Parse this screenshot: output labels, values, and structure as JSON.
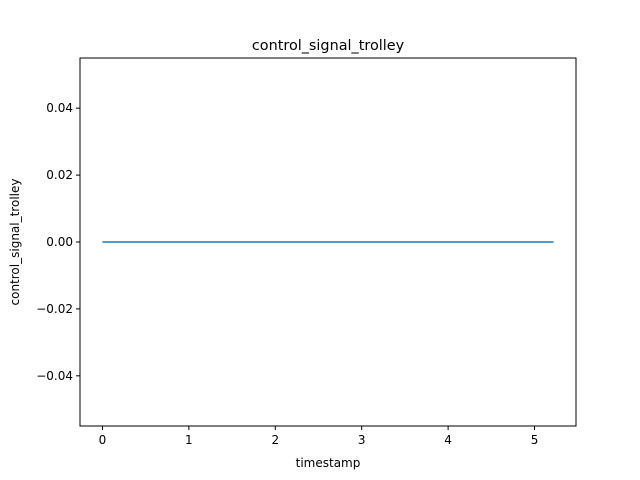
{
  "chart_data": {
    "type": "line",
    "title": "control_signal_trolley",
    "xlabel": "timestamp",
    "ylabel": "control_signal_trolley",
    "xlim": [
      -0.26,
      5.48
    ],
    "ylim": [
      -0.055,
      0.055
    ],
    "xticks": [
      0,
      1,
      2,
      3,
      4,
      5
    ],
    "xtick_labels": [
      "0",
      "1",
      "2",
      "3",
      "4",
      "5"
    ],
    "yticks": [
      -0.04,
      -0.02,
      0.0,
      0.02,
      0.04
    ],
    "ytick_labels": [
      "−0.04",
      "−0.02",
      "0.00",
      "0.02",
      "0.04"
    ],
    "grid": false,
    "series": [
      {
        "color": "#1f77b4",
        "x": [
          0,
          5.22
        ],
        "y": [
          0,
          0
        ]
      }
    ]
  }
}
